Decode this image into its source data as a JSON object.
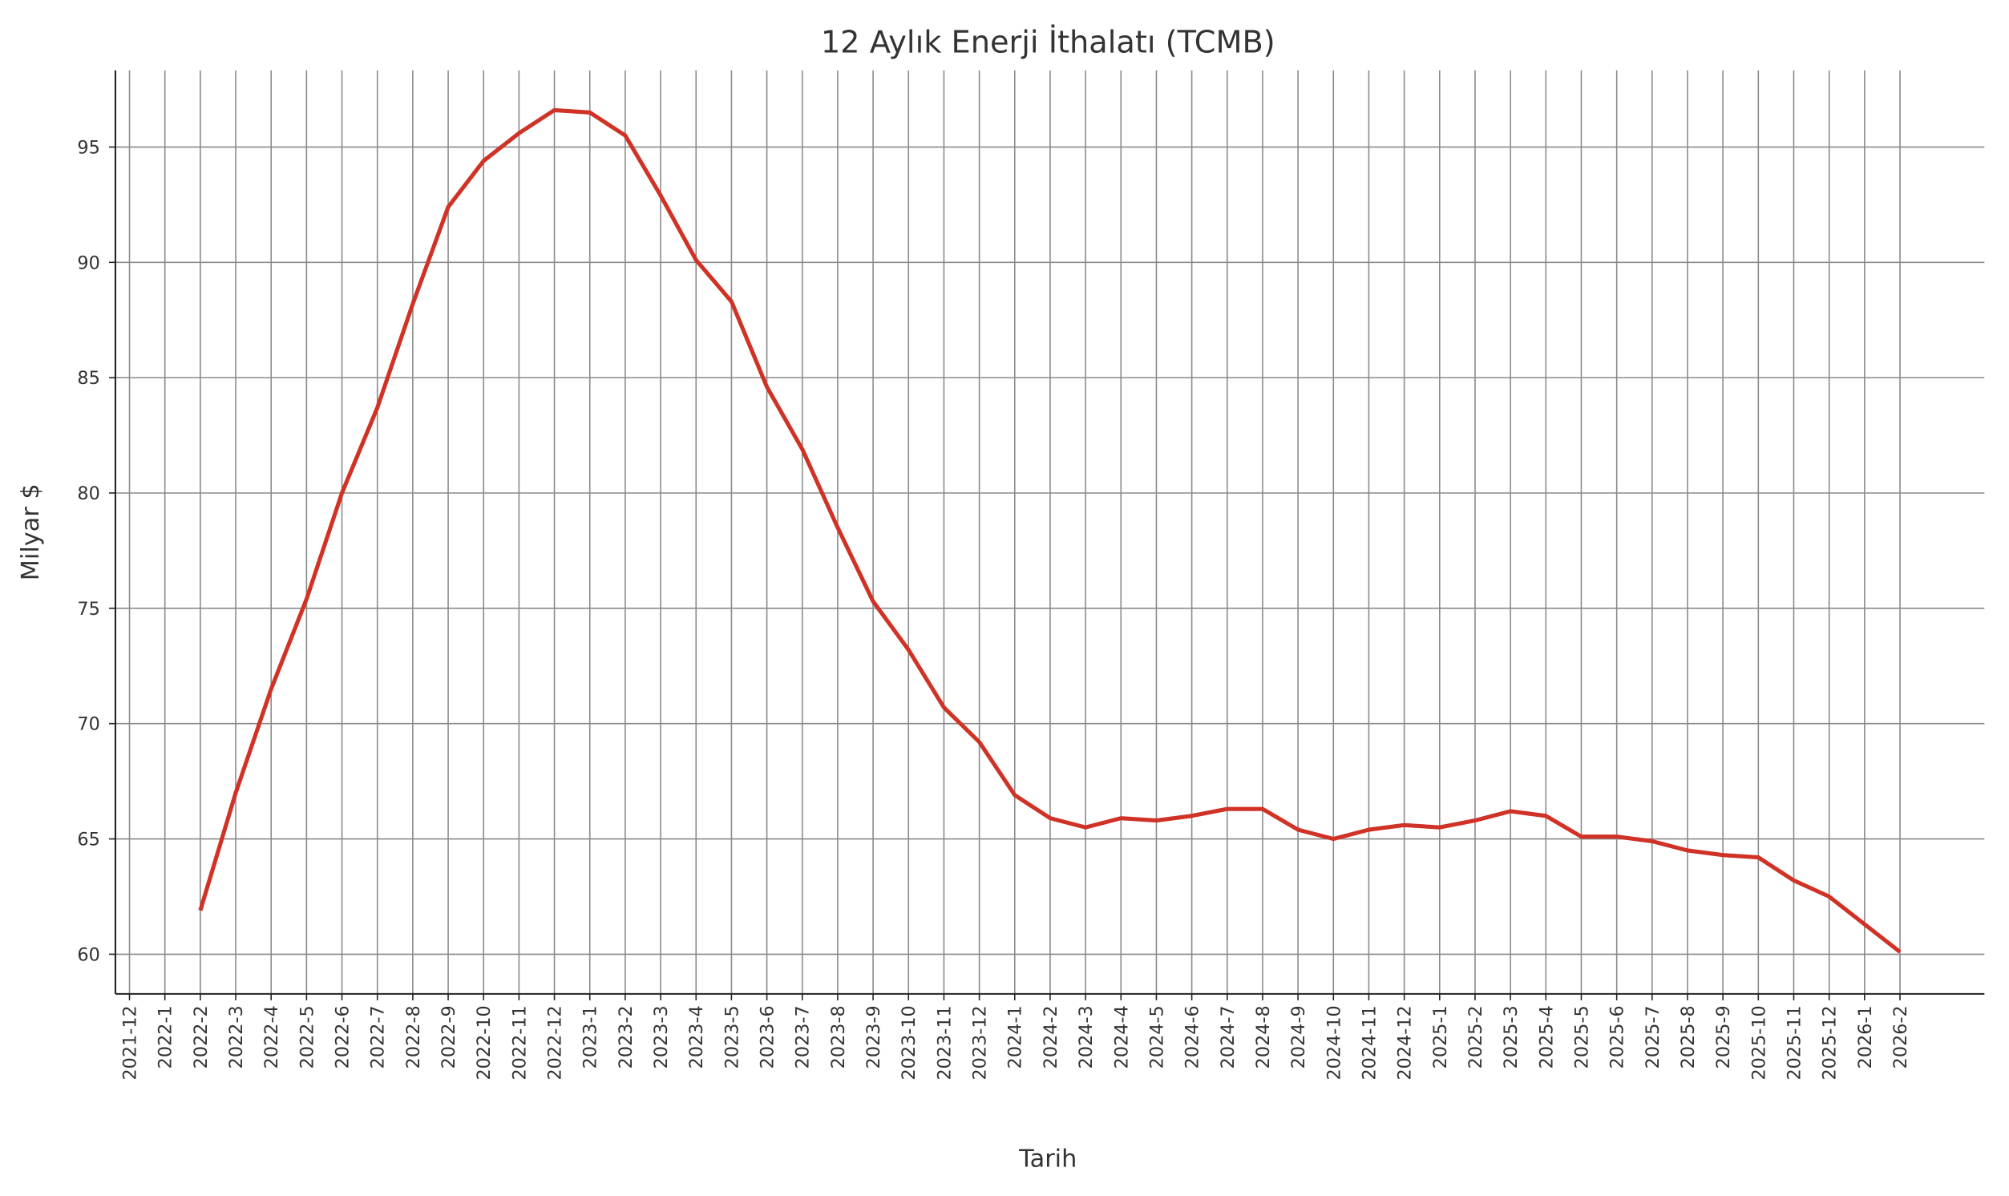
{
  "chart_data": {
    "type": "line",
    "title": "12 Aylık Enerji İthalatı (TCMB)",
    "xlabel": "Tarih",
    "ylabel": "Milyar $",
    "ylim": [
      58.3,
      98.3
    ],
    "yticks": [
      60,
      65,
      70,
      75,
      80,
      85,
      90,
      95
    ],
    "grid": true,
    "line_color": "#d03226",
    "x_ticks": [
      "2021-12",
      "2022-1",
      "2022-2",
      "2022-3",
      "2022-4",
      "2022-5",
      "2022-6",
      "2022-7",
      "2022-8",
      "2022-9",
      "2022-10",
      "2022-11",
      "2022-12",
      "2023-1",
      "2023-2",
      "2023-3",
      "2023-4",
      "2023-5",
      "2023-6",
      "2023-7",
      "2023-8",
      "2023-9",
      "2023-10",
      "2023-11",
      "2023-12",
      "2024-1",
      "2024-2",
      "2024-3",
      "2024-4",
      "2024-5",
      "2024-6",
      "2024-7",
      "2024-8",
      "2024-9",
      "2024-10",
      "2024-11",
      "2024-12",
      "2025-1",
      "2025-2",
      "2025-3",
      "2025-4",
      "2025-5",
      "2025-6",
      "2025-7",
      "2025-8",
      "2025-9",
      "2025-10",
      "2025-11",
      "2025-12",
      "2026-1",
      "2026-2"
    ],
    "series": [
      {
        "name": "Enerji İthalatı",
        "x": [
          "2022-2",
          "2022-3",
          "2022-4",
          "2022-5",
          "2022-6",
          "2022-7",
          "2022-8",
          "2022-9",
          "2022-10",
          "2022-11",
          "2022-12",
          "2023-1",
          "2023-2",
          "2023-3",
          "2023-4",
          "2023-5",
          "2023-6",
          "2023-7",
          "2023-8",
          "2023-9",
          "2023-10",
          "2023-11",
          "2023-12",
          "2024-1",
          "2024-2",
          "2024-3",
          "2024-4",
          "2024-5",
          "2024-6",
          "2024-7",
          "2024-8",
          "2024-9",
          "2024-10",
          "2024-11",
          "2024-12",
          "2025-1",
          "2025-2",
          "2025-3",
          "2025-4",
          "2025-5",
          "2025-6",
          "2025-7",
          "2025-8",
          "2025-9",
          "2025-10",
          "2025-11",
          "2025-12",
          "2026-1",
          "2026-2"
        ],
        "values": [
          61.9,
          67.0,
          71.5,
          75.4,
          80.0,
          83.7,
          88.2,
          92.4,
          94.4,
          95.6,
          96.6,
          96.5,
          95.5,
          92.9,
          90.1,
          88.3,
          84.6,
          81.9,
          78.5,
          75.3,
          73.2,
          70.7,
          69.2,
          66.9,
          65.9,
          65.5,
          65.9,
          65.8,
          66.0,
          66.3,
          66.3,
          65.4,
          65.0,
          65.4,
          65.6,
          65.5,
          65.8,
          66.2,
          66.0,
          65.1,
          65.1,
          64.9,
          64.5,
          64.3,
          64.2,
          63.2,
          62.5,
          61.3,
          60.1
        ]
      }
    ]
  }
}
